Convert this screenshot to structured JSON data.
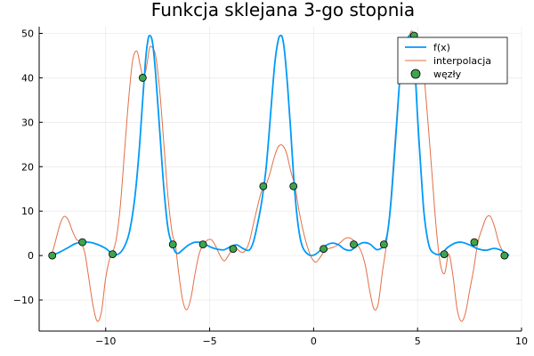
{
  "chart_data": {
    "type": "line",
    "title": "Funkcja sklejana 3-go stopnia",
    "xlabel": "",
    "ylabel": "",
    "xlim": [
      -13.2,
      10.0
    ],
    "ylim": [
      -17,
      51.5
    ],
    "xticks": [
      -10,
      -5,
      0,
      5,
      10
    ],
    "xtick_labels": [
      "−10",
      "−5",
      "0",
      "5",
      "10"
    ],
    "yticks": [
      -10,
      0,
      10,
      20,
      30,
      40,
      50
    ],
    "ytick_labels": [
      "−10",
      "0",
      "10",
      "20",
      "30",
      "40",
      "50"
    ],
    "grid": true,
    "legend_position": "top-right",
    "colors": {
      "f": "#009af9",
      "interp": "#e26f46",
      "nodes": "#3ea44e"
    },
    "series": [
      {
        "name": "f(x)",
        "kind": "line",
        "x": [
          -12.6,
          -12.2,
          -11.8,
          -11.5,
          -11.2,
          -10.8,
          -10.4,
          -10.0,
          -9.7,
          -9.4,
          -9.1,
          -8.85,
          -8.6,
          -8.4,
          -8.25,
          -8.1,
          -8.0,
          -7.9,
          -7.75,
          -7.6,
          -7.4,
          -7.2,
          -7.0,
          -6.8,
          -6.65,
          -6.5,
          -6.3,
          -6.0,
          -5.7,
          -5.4,
          -5.2,
          -4.9,
          -4.6,
          -4.3,
          -4.0,
          -3.7,
          -3.4,
          -3.1,
          -2.9,
          -2.7,
          -2.5,
          -2.3,
          -2.15,
          -2.0,
          -1.85,
          -1.7,
          -1.6,
          -1.5,
          -1.4,
          -1.25,
          -1.1,
          -0.95,
          -0.8,
          -0.65,
          -0.5,
          -0.3,
          -0.1,
          0.1,
          0.4,
          0.6,
          0.9,
          1.2,
          1.5,
          1.8,
          2.1,
          2.4,
          2.7,
          3.0,
          3.2,
          3.4,
          3.55,
          3.7,
          3.85,
          4.0,
          4.15,
          4.3,
          4.45,
          4.6,
          4.7,
          4.8,
          4.9,
          5.0,
          5.15,
          5.3,
          5.45,
          5.6,
          5.8,
          6.0,
          6.2,
          6.35,
          6.5,
          6.8,
          7.1,
          7.5,
          7.9,
          8.3,
          8.7,
          9.1,
          9.4
        ],
        "y": [
          0,
          0.8,
          1.8,
          2.6,
          3.0,
          3.0,
          2.5,
          1.6,
          0.5,
          0.3,
          2.0,
          5.5,
          13.0,
          23.0,
          33.0,
          43.0,
          47.5,
          49.5,
          48.0,
          41.0,
          28.0,
          15.0,
          6.0,
          2.5,
          0.8,
          0.5,
          1.3,
          2.4,
          3.0,
          2.9,
          2.5,
          1.8,
          1.4,
          1.3,
          2.0,
          2.4,
          1.6,
          1.2,
          3.0,
          7.0,
          12.0,
          19.0,
          27.0,
          36.0,
          44.0,
          48.5,
          49.5,
          49.0,
          46.0,
          38.0,
          28.0,
          17.0,
          9.0,
          4.0,
          1.6,
          0.4,
          0.0,
          0.3,
          1.5,
          2.3,
          2.8,
          2.4,
          1.4,
          1.2,
          2.3,
          2.9,
          2.6,
          1.4,
          1.5,
          2.5,
          5.0,
          11.0,
          20.0,
          30.0,
          40.0,
          46.0,
          48.0,
          49.5,
          49.0,
          46.0,
          40.0,
          31.0,
          20.0,
          10.0,
          4.5,
          1.5,
          0.5,
          0.2,
          0.6,
          1.4,
          2.0,
          2.8,
          3.0,
          2.4,
          1.5,
          1.2,
          1.6,
          1.0,
          0.0
        ]
      },
      {
        "name": "interpolacja",
        "kind": "line",
        "x": [
          -12.6,
          -12.4,
          -12.2,
          -12.0,
          -11.8,
          -11.6,
          -11.4,
          -11.2,
          -11.0,
          -10.8,
          -10.6,
          -10.4,
          -10.2,
          -10.0,
          -9.8,
          -9.7,
          -9.5,
          -9.3,
          -9.1,
          -8.9,
          -8.7,
          -8.5,
          -8.35,
          -8.2,
          -8.1,
          -8.0,
          -7.9,
          -7.8,
          -7.6,
          -7.4,
          -7.2,
          -7.0,
          -6.8,
          -6.65,
          -6.5,
          -6.3,
          -6.1,
          -5.9,
          -5.7,
          -5.5,
          -5.3,
          -5.1,
          -4.9,
          -4.7,
          -4.5,
          -4.3,
          -4.1,
          -3.9,
          -3.7,
          -3.5,
          -3.3,
          -3.1,
          -2.9,
          -2.7,
          -2.5,
          -2.3,
          -2.1,
          -1.9,
          -1.7,
          -1.5,
          -1.3,
          -1.1,
          -0.9,
          -0.7,
          -0.5,
          -0.3,
          -0.1,
          0.1,
          0.3,
          0.5,
          0.7,
          0.9,
          1.1,
          1.3,
          1.5,
          1.7,
          1.9,
          2.1,
          2.3,
          2.5,
          2.7,
          2.9,
          3.1,
          3.3,
          3.5,
          3.7,
          3.9,
          4.1,
          4.3,
          4.5,
          4.7,
          4.85,
          5.0,
          5.15,
          5.3,
          5.5,
          5.7,
          5.9,
          6.1,
          6.3,
          6.5,
          6.7,
          6.9,
          7.1,
          7.3,
          7.5,
          7.7,
          7.9,
          8.1,
          8.3,
          8.5,
          8.7,
          8.9,
          9.1,
          9.3,
          9.4
        ],
        "y": [
          0,
          3.5,
          7.0,
          8.8,
          8.0,
          5.5,
          3.6,
          3.0,
          0.5,
          -5.5,
          -11.5,
          -14.8,
          -12.5,
          -5.0,
          -0.5,
          0.3,
          3.5,
          11.0,
          23.0,
          35.0,
          44.0,
          46.0,
          43.0,
          40.0,
          41.0,
          43.5,
          46.5,
          47.0,
          45.0,
          37.0,
          25.0,
          13.0,
          5.0,
          2.5,
          -3.5,
          -10.0,
          -12.2,
          -9.5,
          -4.0,
          0.5,
          2.5,
          3.5,
          3.5,
          2.0,
          0.0,
          -1.2,
          0.0,
          1.4,
          1.5,
          0.8,
          1.0,
          3.0,
          7.0,
          11.0,
          14.5,
          15.8,
          18.5,
          22.0,
          24.5,
          24.8,
          23.0,
          19.0,
          15.6,
          10.0,
          5.5,
          2.0,
          -0.5,
          -1.5,
          -0.5,
          0.8,
          1.5,
          1.8,
          2.2,
          3.0,
          3.8,
          4.0,
          3.5,
          2.5,
          0.8,
          -2.5,
          -8.0,
          -12.0,
          -11.0,
          -4.0,
          2.5,
          12.0,
          25.0,
          37.0,
          44.5,
          48.0,
          50.5,
          49.5,
          48.0,
          46.0,
          41.0,
          30.0,
          18.0,
          6.0,
          -2.0,
          -4.0,
          0.3,
          -4.5,
          -12.0,
          -14.8,
          -13.0,
          -8.0,
          -3.0,
          3.0,
          6.0,
          8.5,
          8.8,
          6.5,
          3.0,
          1.0,
          0.2,
          0.0
        ]
      },
      {
        "name": "węzły",
        "kind": "scatter",
        "x": [
          -12.57,
          -11.12,
          -9.67,
          -8.22,
          -6.77,
          -5.32,
          -3.87,
          -2.42,
          -0.97,
          0.48,
          1.93,
          3.38,
          4.83,
          6.28,
          7.73,
          9.18
        ],
        "y": [
          0,
          3.0,
          0.3,
          40.0,
          2.5,
          2.5,
          1.5,
          15.6,
          15.6,
          1.5,
          2.5,
          2.5,
          49.5,
          0.3,
          3.0,
          0.0
        ]
      }
    ]
  }
}
